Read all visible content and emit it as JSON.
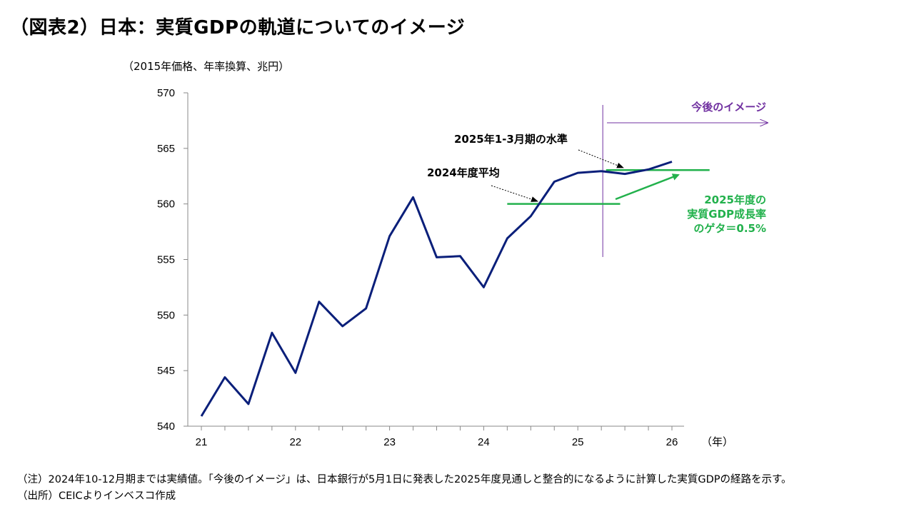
{
  "title": "（図表2）日本：実質GDPの軌道についてのイメージ",
  "chart_data": {
    "type": "line",
    "unit_label": "（2015年価格、年率換算、兆円）",
    "x_unit_label": "（年）",
    "y_ticks": [
      "570",
      "565",
      "560",
      "555",
      "550",
      "545",
      "540"
    ],
    "x_ticks": [
      "21",
      "22",
      "23",
      "24",
      "25",
      "26"
    ],
    "ylim": [
      540,
      570
    ],
    "xlim": [
      2021,
      2026
    ],
    "grid": false,
    "series": [
      {
        "color": "#0a1f7a",
        "points": [
          [
            2021.0,
            540.9
          ],
          [
            2021.25,
            544.4
          ],
          [
            2021.5,
            542.0
          ],
          [
            2021.75,
            548.4
          ],
          [
            2022.0,
            544.8
          ],
          [
            2022.25,
            551.2
          ],
          [
            2022.5,
            549.0
          ],
          [
            2022.75,
            550.6
          ],
          [
            2023.0,
            557.1
          ],
          [
            2023.25,
            560.6
          ],
          [
            2023.5,
            555.2
          ],
          [
            2023.75,
            555.3
          ],
          [
            2024.0,
            552.5
          ],
          [
            2024.25,
            556.9
          ],
          [
            2024.5,
            558.9
          ],
          [
            2024.75,
            562.0
          ],
          [
            2025.0,
            562.8
          ],
          [
            2025.25,
            562.95
          ],
          [
            2025.5,
            562.7
          ],
          [
            2025.75,
            563.1
          ],
          [
            2026.0,
            563.8
          ]
        ]
      }
    ],
    "reference_lines": [
      {
        "x_from": 2024.25,
        "x_to": 2025.45,
        "y": 560.0,
        "color": "#22b14c"
      },
      {
        "x_from": 2025.3,
        "x_to": 2026.4,
        "y": 563.05,
        "color": "#22b14c"
      }
    ],
    "divider_x": 2025.25,
    "annotations": {
      "outlook": "今後のイメージ",
      "outlook_color": "#7030a0",
      "q1_2025_level": "2025年1-3月期の水準",
      "fy2024_avg": "2024年度平均",
      "carryover_lines": [
        "2025年度の",
        "実質GDP成長率",
        "のゲタ＝0.5%"
      ],
      "carryover_color": "#22b14c"
    }
  },
  "notes": {
    "note": "（注）2024年10-12月期までは実績値。「今後のイメージ」は、日本銀行が5月1日に発表した2025年度見通しと整合的になるように計算した実質GDPの経路を示す。",
    "source": "（出所）CEICよりインベスコ作成"
  }
}
